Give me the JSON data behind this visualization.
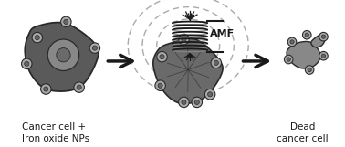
{
  "bg_color": "#ffffff",
  "cell_color": "#7a7a7a",
  "cell_dark": "#5a5a5a",
  "cell_outline": "#2a2a2a",
  "nucleus_color": "#888888",
  "np_outer": "#aaaaaa",
  "np_inner": "#666666",
  "arrow_color": "#1a1a1a",
  "dashed_color": "#aaaaaa",
  "coil_color": "#1a1a1a",
  "text_color": "#1a1a1a",
  "label_left": "Cancer cell +\nIron oxide NPs",
  "label_right": "Dead\ncancer cell",
  "amf_label": "AMF",
  "label_fontsize": 7.5
}
